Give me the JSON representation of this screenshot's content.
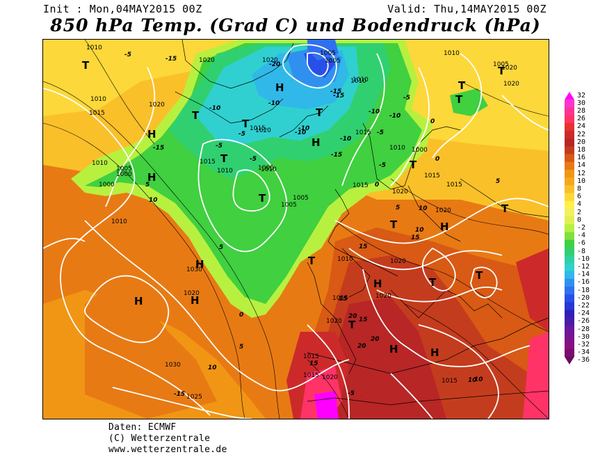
{
  "header": {
    "init": "Init : Mon,04MAY2015 00Z",
    "valid": "Valid: Thu,14MAY2015 00Z",
    "title": "850 hPa Temp. (Grad C) und Bodendruck (hPa)"
  },
  "legend": {
    "values": [
      "32",
      "30",
      "28",
      "26",
      "24",
      "22",
      "20",
      "18",
      "16",
      "14",
      "12",
      "10",
      "8",
      "6",
      "4",
      "2",
      "0",
      "-2",
      "-4",
      "-6",
      "-8",
      "-10",
      "-12",
      "-14",
      "-16",
      "-18",
      "-20",
      "-22",
      "-24",
      "-26",
      "-28",
      "-30",
      "-32",
      "-34",
      "-36"
    ],
    "colors": [
      "#ff00ff",
      "#ff33cc",
      "#ff3399",
      "#ff3366",
      "#e83030",
      "#cc2a2a",
      "#b82626",
      "#c43c1e",
      "#d85a14",
      "#e87a14",
      "#f09614",
      "#f5a81e",
      "#fac02a",
      "#fcd83a",
      "#fff04a",
      "#f0f060",
      "#e0f050",
      "#b8f040",
      "#80e040",
      "#40d040",
      "#30d070",
      "#30d0a0",
      "#30d0d0",
      "#30b8e8",
      "#3090f0",
      "#3070f0",
      "#2850e8",
      "#2838d0",
      "#3020b8",
      "#4a1ca8",
      "#6a189c",
      "#7a1490",
      "#8a1080",
      "#7a0e70",
      "#6a0c60"
    ]
  },
  "map": {
    "pressure_labels": [
      "1010",
      "1005",
      "1005",
      "1010",
      "1020",
      "1020",
      "1010",
      "1005",
      "1010",
      "1015",
      "1010",
      "1020",
      "1015",
      "1000",
      "1010",
      "1015",
      "1005",
      "1000",
      "1005",
      "1015",
      "1010",
      "1010",
      "1020",
      "1015",
      "1000",
      "1030",
      "1020",
      "1005",
      "1010",
      "1015",
      "1020",
      "1020",
      "1020",
      "1015",
      "1015",
      "1030",
      "1025",
      "1015",
      "1020",
      "1020",
      "1020",
      "1015",
      "1015",
      "1010",
      "1010",
      "1020",
      "1020",
      "1005"
    ],
    "temp_labels": [
      "-5",
      "-15",
      "-10",
      "-10",
      "-5",
      "-15",
      "-20",
      "-10",
      "-5",
      "-10",
      "-15",
      "-10",
      "-15",
      "-10",
      "-5",
      "-15",
      "-5",
      "-10",
      "-5",
      "0",
      "-5",
      "0",
      "5",
      "5",
      "5",
      "10",
      "10",
      "10",
      "15",
      "20",
      "20",
      "15",
      "15",
      "5",
      "0",
      "5",
      "10",
      "-15",
      "20",
      "-5",
      "15",
      "10",
      "15",
      "0",
      "10"
    ],
    "high_low_marks": [
      "T",
      "T",
      "T",
      "H",
      "H",
      "T",
      "H",
      "T",
      "T",
      "T",
      "H",
      "T",
      "T",
      "T",
      "T",
      "T",
      "T",
      "H",
      "T",
      "H",
      "H",
      "H",
      "T",
      "T",
      "H",
      "H",
      "H"
    ]
  },
  "credits": {
    "line1": "Daten: ECMWF",
    "line2": "(C) Wetterzentrale",
    "line3": "www.wetterzentrale.de"
  }
}
